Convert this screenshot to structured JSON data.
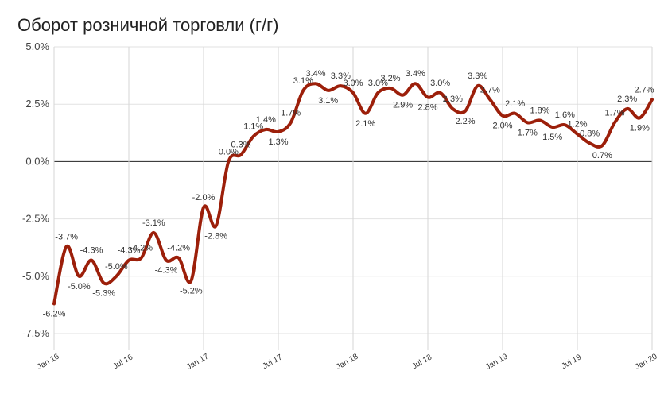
{
  "header": {
    "title": "Оборот розничной торговли (г/г)"
  },
  "chart_data": {
    "type": "line",
    "title": "Оборот розничной торговли (г/г)",
    "xlabel": "",
    "ylabel": "",
    "ylim": [
      -8.5,
      5.0
    ],
    "y_ticks": [
      5.0,
      2.5,
      0.0,
      -2.5,
      -5.0,
      -7.5
    ],
    "y_tick_labels": [
      "5.0%",
      "2.5%",
      "0.0%",
      "-2.5%",
      "-5.0%",
      "-7.5%"
    ],
    "x_ticks": [
      0,
      6,
      12,
      18,
      24,
      30,
      36,
      42,
      48
    ],
    "x_tick_labels": [
      "Jan 16",
      "Jul 16",
      "Jan 17",
      "Jul 17",
      "Jan 18",
      "Jul 18",
      "Jan 19",
      "Jul 19",
      "Jan 20"
    ],
    "grid": true,
    "line_color": "#9c1f0a",
    "series": [
      {
        "x": [
          0,
          1,
          2,
          3,
          4,
          5,
          6,
          7,
          8,
          9,
          10,
          11,
          12,
          13,
          14,
          15,
          16,
          17,
          18,
          19,
          20,
          21,
          22,
          23,
          24,
          25,
          26,
          27,
          28,
          29,
          30,
          31,
          32,
          33,
          34,
          35,
          36,
          37,
          38,
          39,
          40,
          41,
          42,
          43,
          44,
          45,
          46,
          47,
          48
        ],
        "values": [
          -6.2,
          -3.7,
          -5.0,
          -4.3,
          -5.3,
          -5.0,
          -4.3,
          -4.2,
          -3.1,
          -4.3,
          -4.2,
          -5.2,
          -2.0,
          -2.8,
          0.0,
          0.3,
          1.1,
          1.4,
          1.3,
          1.7,
          3.1,
          3.4,
          3.1,
          3.3,
          3.0,
          2.1,
          3.0,
          3.2,
          2.9,
          3.4,
          2.8,
          3.0,
          2.3,
          2.2,
          3.3,
          2.7,
          2.0,
          2.1,
          1.7,
          1.8,
          1.5,
          1.6,
          1.2,
          0.8,
          0.7,
          1.7,
          2.3,
          1.9,
          2.7
        ],
        "labels": [
          "-6.2%",
          "-3.7%",
          "-5.0%",
          "-4.3%",
          "-5.3%",
          "-5.0%",
          "-4.3%",
          "-4.2%",
          "-3.1%",
          "-4.3%",
          "-4.2%",
          "-5.2%",
          "-2.0%",
          "-2.8%",
          "0.0%",
          "0.3%",
          "1.1%",
          "1.4%",
          "1.3%",
          "1.7%",
          "3.1%",
          "3.4%",
          "3.1%",
          "3.3%",
          "3.0%",
          "2.1%",
          "3.0%",
          "3.2%",
          "2.9%",
          "3.4%",
          "2.8%",
          "3.0%",
          "2.3%",
          "2.2%",
          "3.3%",
          "2.7%",
          "2.0%",
          "2.1%",
          "1.7%",
          "1.8%",
          "1.5%",
          "1.6%",
          "1.2%",
          "0.8%",
          "0.7%",
          "1.7%",
          "2.3%",
          "1.9%",
          "2.7%"
        ]
      }
    ]
  }
}
